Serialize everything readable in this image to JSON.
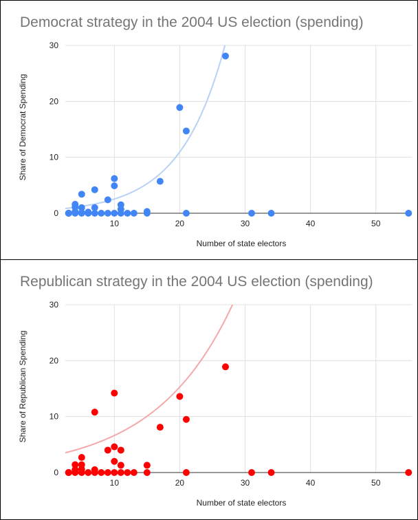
{
  "chart_data": [
    {
      "type": "scatter",
      "title": "Democrat strategy in the 2004 US election (spending)",
      "xlabel": "Number of state electors",
      "ylabel": "Share of Democrat Spending",
      "xlim": [
        2.5,
        55.5
      ],
      "ylim": [
        0,
        30
      ],
      "xticks": [
        10,
        20,
        30,
        40,
        50
      ],
      "yticks": [
        0,
        10,
        20,
        30
      ],
      "grid": true,
      "point_color": "#4285f4",
      "trendline": {
        "type": "exponential",
        "color": "#b8d1f6",
        "a": 0.59,
        "b": 0.146
      },
      "points": [
        {
          "x": 3,
          "y": 0
        },
        {
          "x": 3,
          "y": 0
        },
        {
          "x": 3,
          "y": 0
        },
        {
          "x": 3,
          "y": 0
        },
        {
          "x": 4,
          "y": 1.6
        },
        {
          "x": 4,
          "y": 1.1
        },
        {
          "x": 4,
          "y": 0.3
        },
        {
          "x": 4,
          "y": 0
        },
        {
          "x": 5,
          "y": 3.4
        },
        {
          "x": 5,
          "y": 1.0
        },
        {
          "x": 5,
          "y": 0.1
        },
        {
          "x": 5,
          "y": 0
        },
        {
          "x": 6,
          "y": 0.2
        },
        {
          "x": 6,
          "y": 0
        },
        {
          "x": 7,
          "y": 4.2
        },
        {
          "x": 7,
          "y": 1.0
        },
        {
          "x": 7,
          "y": 0
        },
        {
          "x": 8,
          "y": 0
        },
        {
          "x": 9,
          "y": 2.4
        },
        {
          "x": 9,
          "y": 0
        },
        {
          "x": 10,
          "y": 6.2
        },
        {
          "x": 10,
          "y": 4.9
        },
        {
          "x": 10,
          "y": 0
        },
        {
          "x": 11,
          "y": 1.5
        },
        {
          "x": 11,
          "y": 0.7
        },
        {
          "x": 11,
          "y": 0
        },
        {
          "x": 12,
          "y": 0
        },
        {
          "x": 13,
          "y": 0
        },
        {
          "x": 15,
          "y": 0.3
        },
        {
          "x": 15,
          "y": 0
        },
        {
          "x": 17,
          "y": 5.7
        },
        {
          "x": 20,
          "y": 18.9
        },
        {
          "x": 21,
          "y": 14.7
        },
        {
          "x": 21,
          "y": 0
        },
        {
          "x": 27,
          "y": 28.1
        },
        {
          "x": 31,
          "y": 0
        },
        {
          "x": 34,
          "y": 0
        },
        {
          "x": 55,
          "y": 0
        }
      ]
    },
    {
      "type": "scatter",
      "title": "Republican strategy in the 2004 US election (spending)",
      "xlabel": "Number of state electors",
      "ylabel": "Share of Republican Spending",
      "xlim": [
        2.5,
        55.5
      ],
      "ylim": [
        0,
        30
      ],
      "xticks": [
        10,
        20,
        30,
        40,
        50
      ],
      "yticks": [
        0,
        10,
        20,
        30
      ],
      "grid": true,
      "point_color": "#ff0000",
      "trendline": {
        "type": "exponential",
        "color": "#f6a8a8",
        "a": 2.87,
        "b": 0.0836
      },
      "points": [
        {
          "x": 3,
          "y": 0
        },
        {
          "x": 3,
          "y": 0
        },
        {
          "x": 3,
          "y": 0
        },
        {
          "x": 4,
          "y": 1.4
        },
        {
          "x": 4,
          "y": 0.5
        },
        {
          "x": 4,
          "y": 0
        },
        {
          "x": 5,
          "y": 2.7
        },
        {
          "x": 5,
          "y": 1.4
        },
        {
          "x": 5,
          "y": 0.6
        },
        {
          "x": 5,
          "y": 0
        },
        {
          "x": 6,
          "y": 0
        },
        {
          "x": 7,
          "y": 10.8
        },
        {
          "x": 7,
          "y": 0.5
        },
        {
          "x": 7,
          "y": 0
        },
        {
          "x": 8,
          "y": 0
        },
        {
          "x": 9,
          "y": 4.0
        },
        {
          "x": 9,
          "y": 0
        },
        {
          "x": 10,
          "y": 14.2
        },
        {
          "x": 10,
          "y": 4.6
        },
        {
          "x": 10,
          "y": 2.0
        },
        {
          "x": 10,
          "y": 0
        },
        {
          "x": 11,
          "y": 4.0
        },
        {
          "x": 11,
          "y": 1.3
        },
        {
          "x": 11,
          "y": 0
        },
        {
          "x": 12,
          "y": 0
        },
        {
          "x": 13,
          "y": 0
        },
        {
          "x": 15,
          "y": 1.3
        },
        {
          "x": 15,
          "y": 0
        },
        {
          "x": 17,
          "y": 8.1
        },
        {
          "x": 20,
          "y": 13.6
        },
        {
          "x": 21,
          "y": 9.5
        },
        {
          "x": 21,
          "y": 0
        },
        {
          "x": 27,
          "y": 18.9
        },
        {
          "x": 31,
          "y": 0
        },
        {
          "x": 34,
          "y": 0
        },
        {
          "x": 55,
          "y": 0
        }
      ]
    }
  ]
}
